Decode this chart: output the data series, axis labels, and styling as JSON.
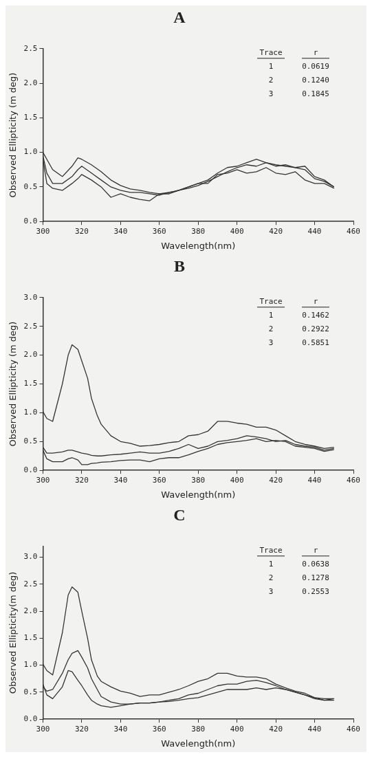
{
  "chart_data": [
    {
      "type": "line",
      "title": "A",
      "xlabel": "Wavelength(nm)",
      "ylabel": "Observed Ellipticity (m deg)",
      "xlim": [
        300,
        460
      ],
      "xticks": [
        300,
        320,
        340,
        360,
        380,
        400,
        420,
        440,
        460
      ],
      "ylim": [
        0,
        2.5
      ],
      "yticks": [
        {
          "value": 0,
          "label": "0.0"
        },
        {
          "value": 0.5,
          "label": "0.5"
        },
        {
          "value": 1,
          "label": "1.0"
        },
        {
          "value": 1.5,
          "label": "1.5"
        },
        {
          "value": 2,
          "label": "2.0"
        },
        {
          "value": 2.5,
          "label": "2.5"
        }
      ],
      "grid": false,
      "legend": false,
      "marker": "none",
      "annotations": [
        "Trace",
        "r",
        "1",
        "0.0619",
        "2",
        "0.1240",
        "3",
        "0.1845"
      ],
      "x": [
        300,
        302,
        305,
        310,
        315,
        318,
        320,
        325,
        330,
        335,
        340,
        345,
        350,
        355,
        360,
        365,
        370,
        375,
        380,
        385,
        390,
        395,
        400,
        405,
        410,
        415,
        420,
        425,
        430,
        435,
        440,
        445,
        450
      ],
      "series": [
        {
          "color": "#333333",
          "values": [
            1.0,
            0.9,
            0.75,
            0.65,
            0.8,
            0.92,
            0.9,
            0.82,
            0.72,
            0.6,
            0.52,
            0.47,
            0.45,
            0.42,
            0.4,
            0.42,
            0.45,
            0.5,
            0.55,
            0.6,
            0.7,
            0.78,
            0.8,
            0.85,
            0.9,
            0.85,
            0.82,
            0.8,
            0.78,
            0.8,
            0.65,
            0.6,
            0.5
          ]
        },
        {
          "color": "#333333",
          "values": [
            0.95,
            0.7,
            0.55,
            0.55,
            0.65,
            0.75,
            0.8,
            0.7,
            0.6,
            0.5,
            0.45,
            0.42,
            0.42,
            0.4,
            0.38,
            0.42,
            0.45,
            0.48,
            0.52,
            0.58,
            0.65,
            0.72,
            0.78,
            0.82,
            0.8,
            0.85,
            0.8,
            0.82,
            0.78,
            0.75,
            0.62,
            0.58,
            0.5
          ]
        },
        {
          "color": "#333333",
          "values": [
            0.9,
            0.55,
            0.48,
            0.45,
            0.55,
            0.62,
            0.68,
            0.6,
            0.5,
            0.35,
            0.4,
            0.35,
            0.32,
            0.3,
            0.4,
            0.4,
            0.45,
            0.5,
            0.55,
            0.55,
            0.68,
            0.7,
            0.75,
            0.7,
            0.72,
            0.78,
            0.7,
            0.68,
            0.72,
            0.6,
            0.55,
            0.55,
            0.48
          ]
        }
      ]
    },
    {
      "type": "line",
      "title": "B",
      "xlabel": "Wavelength(nm)",
      "ylabel": "Observed Ellipticity (m deg)",
      "xlim": [
        300,
        460
      ],
      "xticks": [
        300,
        320,
        340,
        360,
        380,
        400,
        420,
        440,
        460
      ],
      "ylim": [
        0,
        3
      ],
      "yticks": [
        {
          "value": 0,
          "label": "0.0"
        },
        {
          "value": 0.5,
          "label": "0.5"
        },
        {
          "value": 1,
          "label": "1.0"
        },
        {
          "value": 1.5,
          "label": "1.5"
        },
        {
          "value": 2,
          "label": "2.0"
        },
        {
          "value": 2.5,
          "label": "2.5"
        },
        {
          "value": 3,
          "label": "3.0"
        }
      ],
      "grid": false,
      "legend": false,
      "marker": "none",
      "annotations": [
        "Trace",
        "r",
        "1",
        "0.1462",
        "2",
        "0.2922",
        "3",
        "0.5851"
      ],
      "x": [
        300,
        302,
        305,
        310,
        313,
        315,
        318,
        320,
        323,
        325,
        328,
        330,
        335,
        340,
        345,
        350,
        355,
        360,
        365,
        370,
        375,
        380,
        385,
        390,
        395,
        400,
        405,
        410,
        415,
        420,
        425,
        430,
        435,
        440,
        445,
        450
      ],
      "series": [
        {
          "color": "#333333",
          "values": [
            1.02,
            0.9,
            0.85,
            1.5,
            2.0,
            2.18,
            2.1,
            1.9,
            1.6,
            1.25,
            0.95,
            0.8,
            0.6,
            0.5,
            0.47,
            0.42,
            0.43,
            0.45,
            0.48,
            0.5,
            0.6,
            0.62,
            0.68,
            0.85,
            0.85,
            0.82,
            0.8,
            0.75,
            0.75,
            0.7,
            0.6,
            0.5,
            0.45,
            0.42,
            0.38,
            0.4
          ]
        },
        {
          "color": "#333333",
          "values": [
            0.4,
            0.3,
            0.3,
            0.32,
            0.35,
            0.35,
            0.32,
            0.3,
            0.28,
            0.26,
            0.25,
            0.25,
            0.27,
            0.28,
            0.3,
            0.32,
            0.3,
            0.3,
            0.33,
            0.38,
            0.45,
            0.38,
            0.42,
            0.5,
            0.52,
            0.55,
            0.6,
            0.58,
            0.55,
            0.5,
            0.52,
            0.45,
            0.42,
            0.4,
            0.35,
            0.38
          ]
        },
        {
          "color": "#333333",
          "values": [
            0.35,
            0.2,
            0.15,
            0.15,
            0.2,
            0.22,
            0.18,
            0.1,
            0.1,
            0.12,
            0.13,
            0.14,
            0.15,
            0.17,
            0.18,
            0.18,
            0.15,
            0.2,
            0.22,
            0.22,
            0.27,
            0.33,
            0.38,
            0.45,
            0.48,
            0.5,
            0.52,
            0.55,
            0.5,
            0.52,
            0.5,
            0.42,
            0.4,
            0.38,
            0.33,
            0.36
          ]
        }
      ]
    },
    {
      "type": "line",
      "title": "C",
      "xlabel": "Wavelength(nm)",
      "ylabel": "Observed Ellipticity(m deg)",
      "xlim": [
        300,
        460
      ],
      "xticks": [
        300,
        320,
        340,
        360,
        380,
        400,
        420,
        440,
        460
      ],
      "ylim": [
        0,
        3.2
      ],
      "yticks": [
        {
          "value": 0,
          "label": "0.0"
        },
        {
          "value": 0.5,
          "label": "0.5"
        },
        {
          "value": 1,
          "label": "1.0"
        },
        {
          "value": 1.5,
          "label": "1.5"
        },
        {
          "value": 2,
          "label": "2.0"
        },
        {
          "value": 2.5,
          "label": "2.5"
        },
        {
          "value": 3,
          "label": "3.0"
        }
      ],
      "grid": false,
      "legend": false,
      "marker": "none",
      "annotations": [
        "Trace",
        "r",
        "1",
        "0.0638",
        "2",
        "0.1278",
        "3",
        "0.2553"
      ],
      "x": [
        300,
        302,
        305,
        310,
        313,
        315,
        318,
        320,
        323,
        325,
        328,
        330,
        335,
        340,
        345,
        350,
        355,
        360,
        365,
        370,
        375,
        380,
        385,
        390,
        395,
        400,
        405,
        410,
        415,
        420,
        425,
        430,
        435,
        440,
        445,
        450
      ],
      "series": [
        {
          "color": "#333333",
          "values": [
            1.02,
            0.9,
            0.82,
            1.6,
            2.3,
            2.45,
            2.35,
            2.0,
            1.5,
            1.1,
            0.8,
            0.7,
            0.6,
            0.52,
            0.48,
            0.42,
            0.45,
            0.45,
            0.5,
            0.55,
            0.62,
            0.7,
            0.75,
            0.85,
            0.85,
            0.8,
            0.78,
            0.78,
            0.75,
            0.65,
            0.58,
            0.52,
            0.48,
            0.4,
            0.38,
            0.38
          ]
        },
        {
          "color": "#333333",
          "values": [
            0.6,
            0.52,
            0.55,
            0.85,
            1.1,
            1.22,
            1.27,
            1.15,
            0.95,
            0.75,
            0.55,
            0.42,
            0.32,
            0.28,
            0.28,
            0.3,
            0.3,
            0.32,
            0.35,
            0.38,
            0.45,
            0.48,
            0.55,
            0.62,
            0.65,
            0.65,
            0.7,
            0.72,
            0.68,
            0.62,
            0.55,
            0.5,
            0.45,
            0.4,
            0.35,
            0.38
          ]
        },
        {
          "color": "#333333",
          "values": [
            0.65,
            0.45,
            0.38,
            0.6,
            0.9,
            0.88,
            0.72,
            0.62,
            0.45,
            0.35,
            0.28,
            0.25,
            0.22,
            0.25,
            0.28,
            0.3,
            0.3,
            0.32,
            0.33,
            0.35,
            0.38,
            0.4,
            0.45,
            0.5,
            0.55,
            0.55,
            0.55,
            0.58,
            0.55,
            0.58,
            0.55,
            0.5,
            0.45,
            0.38,
            0.35,
            0.35
          ]
        }
      ]
    }
  ]
}
